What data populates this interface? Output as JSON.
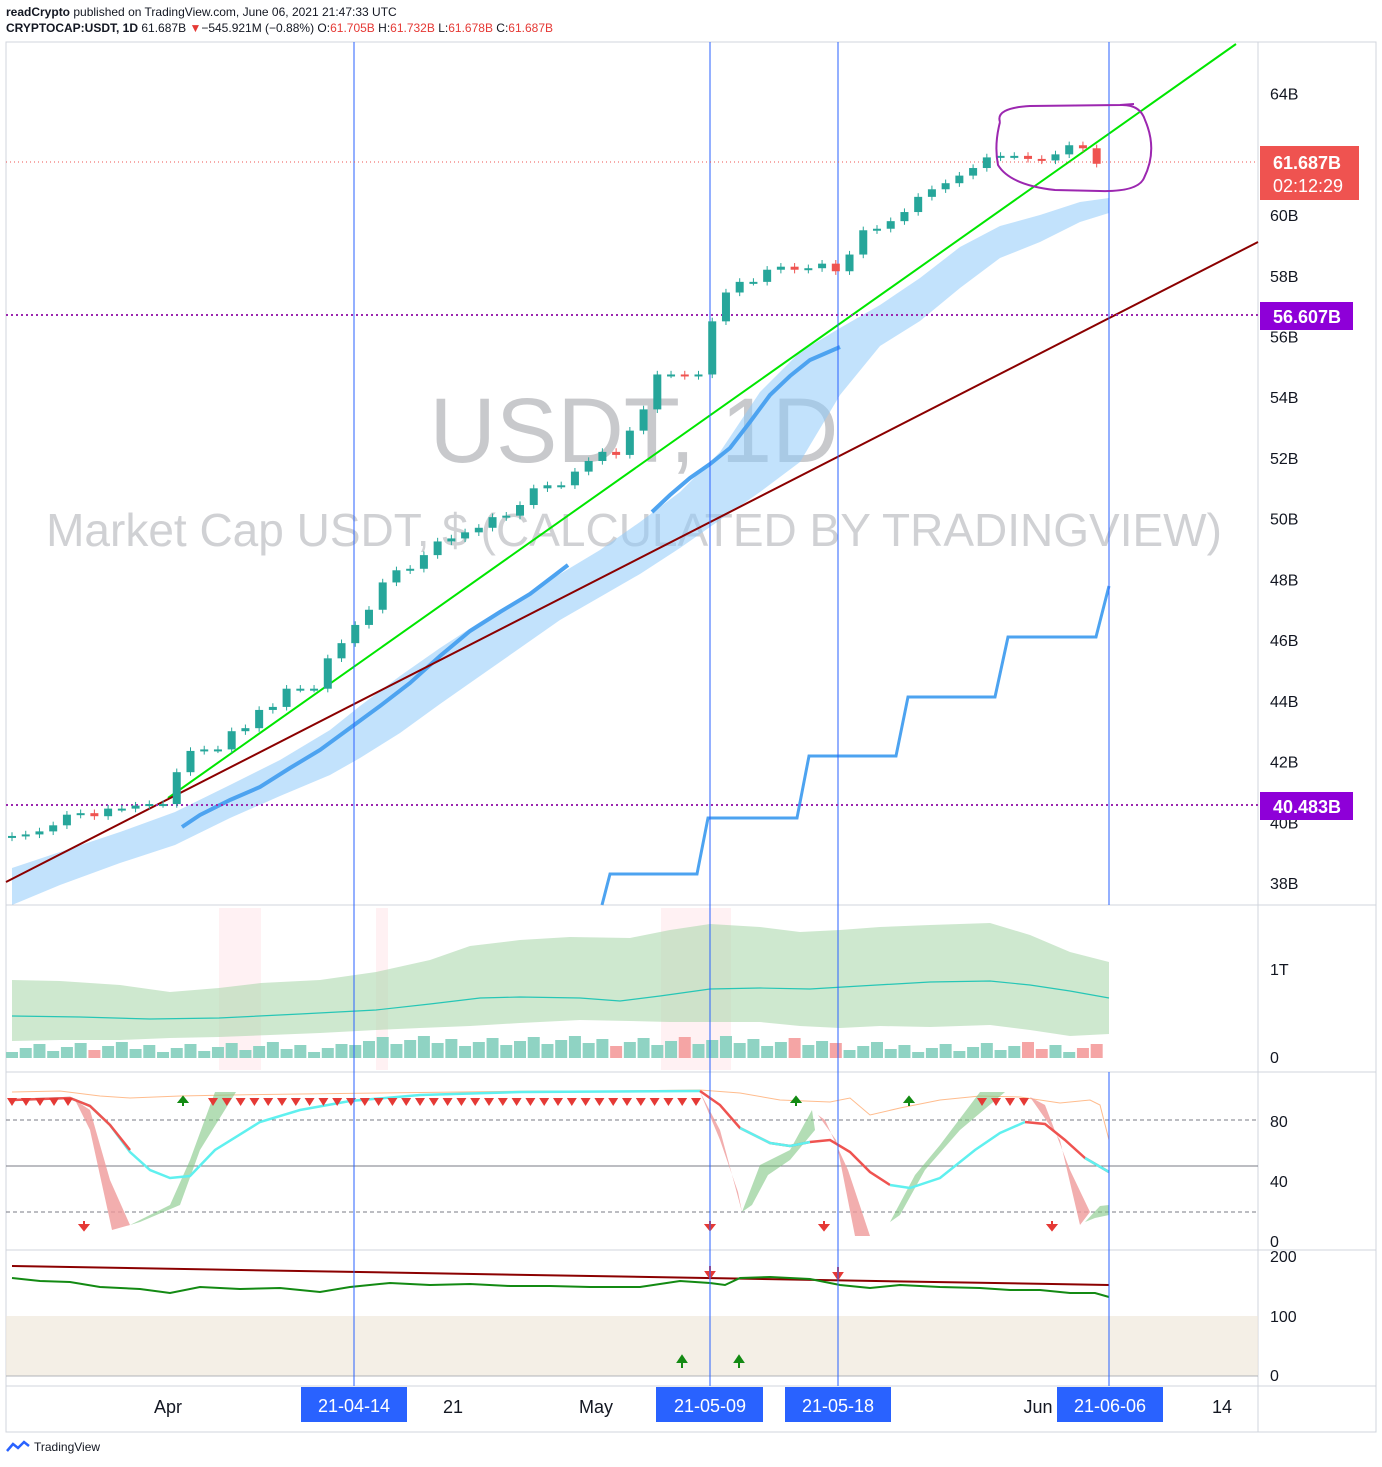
{
  "header": {
    "publisher": "readCrypto",
    "published_text": "published on TradingView.com, June 06, 2021 21:47:33 UTC",
    "symbol": "CRYPTOCAP:USDT, 1D",
    "last": "61.687B",
    "change_arrow": "▼",
    "change": "−545.921M (−0.88%)",
    "o_label": "O:",
    "o_val": "61.705B",
    "h_label": "H:",
    "h_val": "61.732B",
    "l_label": "L:",
    "l_val": "61.678B",
    "c_label": "C:",
    "c_val": "61.687B"
  },
  "watermark": {
    "line1": "USDT, 1D",
    "line2": "Market Cap USDT, $ (CALCULATED BY TRADINGVIEW)"
  },
  "price_tags": {
    "last": "61.687B",
    "countdown": "02:12:29",
    "level_high": "56.607B",
    "level_low": "40.483B"
  },
  "footer": {
    "brand": "TradingView"
  },
  "colors": {
    "up": "#26a69a",
    "down": "#ef5350",
    "axis_text": "#131722",
    "vline": "#2962ff",
    "level": "#9c27b0",
    "green_line": "#00e600",
    "maroon_line": "#8b0000",
    "ma_blue": "#4da3f0",
    "band": "#90caf9",
    "date_tag": "#2962ff",
    "purple_tag": "#8e00d8",
    "price_tag": "#ef5350"
  },
  "chart_data": [
    {
      "type": "candlestick",
      "title": "",
      "ylabel": "",
      "ylim": [
        37,
        65
      ],
      "y_ticks": [
        "38B",
        "40B",
        "42B",
        "44B",
        "46B",
        "48B",
        "50B",
        "52B",
        "54B",
        "56B",
        "58B",
        "60B",
        "62B",
        "64B"
      ],
      "x_ticks": [
        "Apr",
        "21",
        "May",
        "Jun",
        "14"
      ],
      "date_tags": [
        "21-04-14",
        "21-05-09",
        "21-05-18",
        "21-06-06"
      ],
      "horizontal_levels": [
        56.607,
        40.483
      ],
      "series": [
        {
          "name": "",
          "values": [
            39.55,
            39.6,
            39.7,
            39.9,
            40.25,
            40.3,
            40.2,
            40.45,
            40.45,
            40.55,
            40.6,
            40.6,
            41.65,
            42.35,
            42.4,
            42.4,
            43.0,
            43.1,
            43.7,
            43.8,
            44.4,
            44.4,
            44.4,
            45.4,
            45.9,
            46.5,
            47.0,
            47.9,
            48.3,
            48.35,
            48.8,
            49.25,
            49.35,
            49.55,
            49.7,
            50.05,
            50.1,
            50.45,
            51.0,
            51.1,
            51.1,
            51.55,
            51.9,
            52.2,
            52.1,
            52.9,
            53.6,
            54.75,
            54.75,
            54.7,
            54.75,
            56.5,
            57.45,
            57.8,
            57.8,
            58.2,
            58.3,
            58.2,
            58.25,
            58.4,
            58.15,
            58.7,
            59.5,
            59.55,
            59.8,
            60.1,
            60.6,
            60.85,
            61.05,
            61.3,
            61.55,
            61.9,
            61.95,
            61.95,
            61.85,
            61.8,
            62.0,
            62.3,
            62.2,
            61.69
          ]
        }
      ],
      "trendlines": [
        "green support",
        "maroon support"
      ]
    },
    {
      "type": "bar",
      "title": "",
      "y_ticks": [
        "0",
        "1T"
      ]
    },
    {
      "type": "line",
      "title": "",
      "y_ticks": [
        "0",
        "40",
        "80"
      ],
      "levels": [
        20,
        80,
        50
      ]
    },
    {
      "type": "line",
      "title": "",
      "y_ticks": [
        "0",
        "100",
        "200"
      ]
    }
  ]
}
